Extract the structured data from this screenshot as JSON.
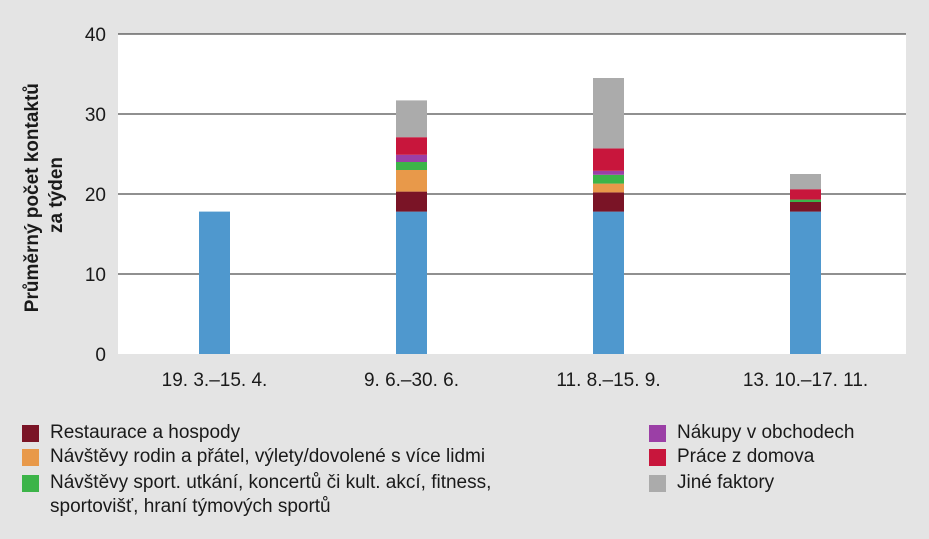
{
  "chart_data": {
    "type": "bar",
    "stacked": true,
    "categories": [
      "19. 3.–15. 4.",
      "9. 6.–30. 6.",
      "11. 8.–15. 9.",
      "13. 10.–17. 11."
    ],
    "ylabel_line1": "Průměrný počet kontaktů",
    "ylabel_line2": "za týden",
    "ylim": [
      0,
      40
    ],
    "yticks": [
      0,
      10,
      20,
      30,
      40
    ],
    "grid": true,
    "base": {
      "values": [
        17.8,
        17.8,
        17.8,
        17.8
      ],
      "color": "#4f98ce"
    },
    "series": [
      {
        "name": "Restaurace a hospody",
        "color": "#7a1426",
        "values": [
          0,
          2.5,
          2.4,
          1.2
        ]
      },
      {
        "name": "Návštěvy rodin a přátel, výlety/dovolené s více lidmi",
        "color": "#e8994a",
        "values": [
          0,
          2.7,
          1.1,
          0
        ]
      },
      {
        "name": "Návštěvy sport. utkání, koncertů či kult. akcí, fitness, sportovišť, hraní týmových sportů",
        "color": "#3cb449",
        "values": [
          0,
          1.0,
          1.1,
          0.3
        ]
      },
      {
        "name": "Nákupy v obchodech",
        "color": "#9b3fa6",
        "values": [
          0,
          0.9,
          0.5,
          0
        ]
      },
      {
        "name": "Práce z domova",
        "color": "#c8163c",
        "values": [
          0,
          2.2,
          2.8,
          1.3
        ]
      },
      {
        "name": "Jiné faktory",
        "color": "#ababab",
        "values": [
          0,
          4.6,
          8.8,
          1.9
        ]
      }
    ]
  },
  "legend": {
    "left": [
      {
        "label": "Restaurace a hospody",
        "color": "#7a1426"
      },
      {
        "label": "Návštěvy rodin a přátel, výlety/dovolené s více lidmi",
        "color": "#e8994a"
      },
      {
        "label": "Návštěvy sport. utkání, koncertů či kult. akcí, fitness,",
        "label2": "sportovišť, hraní týmových sportů",
        "color": "#3cb449"
      }
    ],
    "right": [
      {
        "label": "Nákupy v obchodech",
        "color": "#9b3fa6"
      },
      {
        "label": "Práce z domova",
        "color": "#c8163c"
      },
      {
        "label": "Jiné faktory",
        "color": "#ababab"
      }
    ]
  }
}
